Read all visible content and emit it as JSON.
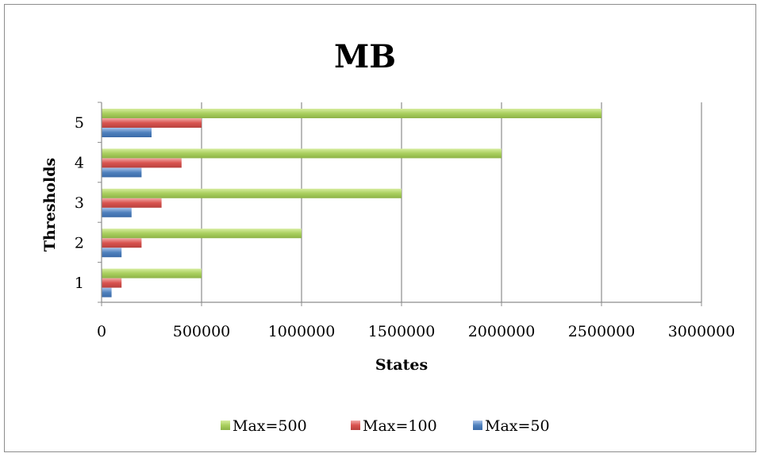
{
  "chart_data": {
    "type": "bar",
    "orientation": "horizontal",
    "title": "MB",
    "xlabel": "States",
    "ylabel": "Thresholds",
    "categories": [
      "1",
      "2",
      "3",
      "4",
      "5"
    ],
    "xlim": [
      0,
      3000000
    ],
    "x_ticks": [
      0,
      500000,
      1000000,
      1500000,
      2000000,
      2500000,
      3000000
    ],
    "x_tick_labels": [
      "0",
      "500000",
      "1000000",
      "1500000",
      "2000000",
      "2500000",
      "3000000"
    ],
    "grid": "vertical",
    "legend_position": "bottom",
    "series": [
      {
        "name": "Max=50",
        "color": "#4f81bd",
        "values": [
          50000,
          100000,
          150000,
          200000,
          250000
        ]
      },
      {
        "name": "Max=100",
        "color": "#c0504d",
        "values": [
          100000,
          200000,
          300000,
          400000,
          500000
        ]
      },
      {
        "name": "Max=500",
        "color": "#9bbb59",
        "values": [
          500000,
          1000000,
          1500000,
          2000000,
          2500000
        ]
      }
    ],
    "legend_order": [
      "Max=500",
      "Max=100",
      "Max=50"
    ]
  }
}
